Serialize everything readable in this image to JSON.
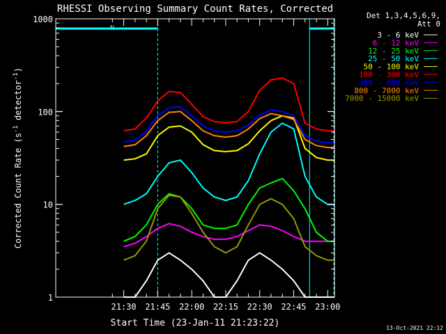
{
  "chart_data": {
    "type": "line",
    "title": "RHESSI Observing Summary Count Rates, Corrected",
    "xlabel": "Start Time (23-Jan-11 21:23:22)",
    "ylabel_main": "Corrected Count Rate (s",
    "ylabel_sup1": "-1",
    "ylabel_mid": " detector",
    "ylabel_sup2": "-1",
    "ylabel_end": ")",
    "yscale": "log",
    "ylim": [
      1,
      1000
    ],
    "xlim_minutes": [
      -30,
      93
    ],
    "x_ticks": [
      "21:30",
      "21:45",
      "22:00",
      "22:15",
      "22:30",
      "22:45",
      "23:00"
    ],
    "y_ticks": [
      "1",
      "10",
      "100",
      "1000"
    ],
    "legend_header": [
      "Det 1,3,4,5,6,9,",
      "Att 0"
    ],
    "annotation_N": "N",
    "footer_date": "13-Oct-2021 22:12",
    "night_bands": [
      [
        -30,
        15
      ],
      [
        82,
        98
      ]
    ],
    "series": [
      {
        "name": "3 - 6 keV",
        "color": "#ffffff",
        "x": [
          0,
          5,
          10,
          15,
          20,
          25,
          30,
          35,
          40,
          45,
          50,
          55,
          60,
          65,
          70,
          75,
          80,
          85,
          90,
          93
        ],
        "y": [
          1,
          1,
          1.5,
          2.5,
          3,
          2.5,
          2,
          1.5,
          1,
          1,
          1.5,
          2.5,
          3,
          2.5,
          2,
          1.5,
          1,
          1,
          1,
          1
        ]
      },
      {
        "name": "6 - 12 keV",
        "color": "#ff00ff",
        "x": [
          0,
          5,
          10,
          15,
          20,
          25,
          30,
          35,
          40,
          45,
          50,
          55,
          60,
          65,
          70,
          75,
          80,
          85,
          90,
          93
        ],
        "y": [
          3.5,
          3.8,
          4.5,
          5.5,
          6.2,
          5.8,
          5,
          4.5,
          4.2,
          4.2,
          4.5,
          5.2,
          6,
          5.8,
          5.2,
          4.5,
          4,
          4,
          4,
          4
        ]
      },
      {
        "name": "12 - 25 keV",
        "color": "#00ff00",
        "x": [
          0,
          5,
          10,
          15,
          20,
          25,
          30,
          35,
          40,
          45,
          50,
          55,
          60,
          65,
          70,
          75,
          80,
          85,
          90,
          93
        ],
        "y": [
          4,
          4.5,
          6,
          10,
          13,
          12,
          9,
          6,
          5.5,
          5.5,
          6,
          10,
          15,
          17,
          19,
          14,
          9,
          5,
          4,
          4
        ]
      },
      {
        "name": "25 - 50 keV",
        "color": "#00ffff",
        "x": [
          0,
          5,
          10,
          15,
          20,
          25,
          30,
          35,
          40,
          45,
          50,
          55,
          60,
          65,
          70,
          75,
          80,
          85,
          90,
          93
        ],
        "y": [
          10,
          11,
          13,
          20,
          28,
          30,
          22,
          15,
          12,
          11,
          12,
          18,
          35,
          60,
          75,
          65,
          20,
          12,
          10,
          10
        ]
      },
      {
        "name": "50 - 100 keV",
        "color": "#ffff00",
        "x": [
          0,
          5,
          10,
          15,
          20,
          25,
          30,
          35,
          40,
          45,
          50,
          55,
          60,
          65,
          70,
          75,
          80,
          85,
          90,
          93
        ],
        "y": [
          30,
          31,
          35,
          55,
          68,
          70,
          60,
          44,
          38,
          37,
          38,
          45,
          62,
          80,
          90,
          85,
          40,
          32,
          30,
          30
        ]
      },
      {
        "name": "100 - 300 keV",
        "color": "#ff0000",
        "x": [
          0,
          5,
          10,
          15,
          20,
          25,
          30,
          35,
          40,
          45,
          50,
          55,
          60,
          65,
          70,
          75,
          80,
          85,
          90,
          93
        ],
        "y": [
          62,
          65,
          85,
          130,
          165,
          160,
          120,
          88,
          78,
          76,
          78,
          100,
          170,
          220,
          230,
          200,
          75,
          65,
          62,
          62
        ]
      },
      {
        "name": "300 - 800 keV",
        "color": "#0000ff",
        "x": [
          0,
          5,
          10,
          15,
          20,
          25,
          30,
          35,
          40,
          45,
          50,
          55,
          60,
          65,
          70,
          75,
          80,
          85,
          90,
          93
        ],
        "y": [
          47,
          49,
          62,
          90,
          110,
          112,
          90,
          70,
          62,
          60,
          62,
          72,
          92,
          104,
          100,
          90,
          55,
          48,
          46,
          46
        ]
      },
      {
        "name": "800 - 7000 keV",
        "color": "#ff8800",
        "x": [
          0,
          5,
          10,
          15,
          20,
          25,
          30,
          35,
          40,
          45,
          50,
          55,
          60,
          65,
          70,
          75,
          80,
          85,
          90,
          93
        ],
        "y": [
          42,
          44,
          55,
          80,
          98,
          100,
          80,
          62,
          55,
          53,
          55,
          65,
          84,
          95,
          90,
          82,
          50,
          43,
          41,
          41
        ]
      },
      {
        "name": "7000 - 15000 keV",
        "color": "#999900",
        "x": [
          0,
          5,
          10,
          15,
          20,
          25,
          30,
          35,
          40,
          45,
          50,
          55,
          60,
          65,
          70,
          75,
          80,
          85,
          90,
          93
        ],
        "y": [
          2.5,
          2.8,
          4,
          9,
          12.5,
          12,
          8,
          5,
          3.5,
          3,
          3.5,
          6,
          10,
          11.5,
          10,
          7,
          3.5,
          2.8,
          2.5,
          2.5
        ]
      }
    ]
  }
}
